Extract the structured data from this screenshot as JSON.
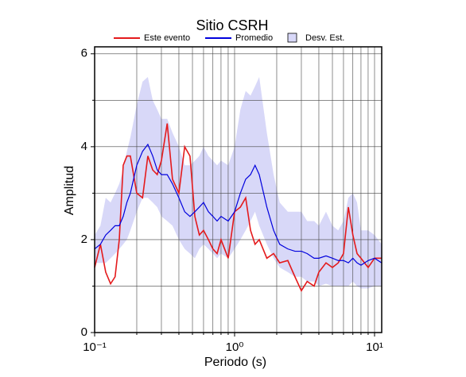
{
  "chart_data": {
    "type": "line",
    "title": "Sitio CSRH",
    "xlabel": "Periodo (s)",
    "ylabel": "Amplitud",
    "xscale": "log",
    "xlim": [
      0.1,
      11.25
    ],
    "ylim": [
      0,
      6.15
    ],
    "xticks": [
      {
        "value": 0.1,
        "label": "10⁻¹"
      },
      {
        "value": 1,
        "label": "10⁰"
      },
      {
        "value": 10,
        "label": "10¹"
      }
    ],
    "xticks_minor": [
      0.2,
      0.3,
      0.4,
      0.5,
      0.6,
      0.7,
      0.8,
      0.9,
      2,
      3,
      4,
      5,
      6,
      7,
      8,
      9
    ],
    "yticks": [
      0,
      2,
      4,
      6
    ],
    "yticks_minor": [
      1,
      3,
      5
    ],
    "grid": true,
    "legend": "top",
    "x": [
      0.1,
      0.11,
      0.12,
      0.13,
      0.14,
      0.15,
      0.16,
      0.17,
      0.18,
      0.2,
      0.22,
      0.24,
      0.26,
      0.28,
      0.3,
      0.33,
      0.36,
      0.4,
      0.44,
      0.48,
      0.52,
      0.56,
      0.6,
      0.65,
      0.7,
      0.75,
      0.8,
      0.9,
      1.0,
      1.1,
      1.2,
      1.3,
      1.4,
      1.5,
      1.7,
      1.9,
      2.1,
      2.4,
      2.7,
      3.0,
      3.3,
      3.7,
      4.0,
      4.5,
      5,
      5.5,
      6,
      6.5,
      7,
      7.5,
      8,
      9,
      10,
      11.25
    ],
    "series": [
      {
        "name": "Este evento",
        "color": "#e41a1c",
        "values": [
          1.4,
          1.9,
          1.3,
          1.05,
          1.2,
          2.0,
          3.6,
          3.8,
          3.8,
          3.0,
          2.9,
          3.8,
          3.5,
          3.4,
          3.7,
          4.5,
          3.3,
          3.0,
          4.0,
          3.8,
          2.5,
          2.1,
          2.2,
          2.0,
          1.8,
          1.7,
          2.0,
          1.6,
          2.6,
          2.7,
          2.9,
          2.2,
          1.9,
          2.0,
          1.6,
          1.7,
          1.5,
          1.55,
          1.2,
          0.9,
          1.1,
          1.0,
          1.3,
          1.5,
          1.4,
          1.5,
          1.7,
          2.7,
          2.1,
          1.7,
          1.6,
          1.4,
          1.6,
          1.6
        ]
      },
      {
        "name": "Promedio",
        "color": "#0000dd",
        "values": [
          1.8,
          1.9,
          2.1,
          2.2,
          2.3,
          2.3,
          2.5,
          2.8,
          3.0,
          3.6,
          3.9,
          4.05,
          3.8,
          3.5,
          3.4,
          3.4,
          3.2,
          2.9,
          2.6,
          2.5,
          2.6,
          2.7,
          2.8,
          2.6,
          2.5,
          2.4,
          2.5,
          2.4,
          2.6,
          3.0,
          3.3,
          3.4,
          3.6,
          3.4,
          2.7,
          2.2,
          1.9,
          1.8,
          1.75,
          1.75,
          1.7,
          1.6,
          1.6,
          1.65,
          1.6,
          1.55,
          1.55,
          1.5,
          1.6,
          1.5,
          1.45,
          1.55,
          1.6,
          1.5
        ]
      }
    ],
    "band": {
      "name": "Desv. Est.",
      "color": "#d8d8f8",
      "upper": [
        2.1,
        2.3,
        2.9,
        2.8,
        3.0,
        3.2,
        3.5,
        3.9,
        4.2,
        4.9,
        5.4,
        5.5,
        5.0,
        4.8,
        4.6,
        4.6,
        4.3,
        4.0,
        3.6,
        3.6,
        3.7,
        3.8,
        4.0,
        3.8,
        3.7,
        3.6,
        3.7,
        3.6,
        4.0,
        4.8,
        5.2,
        5.1,
        5.3,
        5.5,
        4.3,
        3.4,
        2.8,
        2.6,
        2.6,
        2.6,
        2.4,
        2.4,
        2.3,
        2.6,
        2.3,
        2.2,
        2.4,
        2.9,
        3.0,
        2.8,
        2.2,
        2.2,
        2.1,
        1.9
      ],
      "lower": [
        1.5,
        1.5,
        1.5,
        1.6,
        1.7,
        1.8,
        1.9,
        2.0,
        2.2,
        2.6,
        2.9,
        2.9,
        2.8,
        2.7,
        2.5,
        2.4,
        2.3,
        2.0,
        1.8,
        1.7,
        1.6,
        1.8,
        1.9,
        1.8,
        1.7,
        1.6,
        1.7,
        1.6,
        1.8,
        2.0,
        2.2,
        2.4,
        2.6,
        2.3,
        1.9,
        1.6,
        1.4,
        1.3,
        1.2,
        1.2,
        1.1,
        1.1,
        1.0,
        1.05,
        1.0,
        1.0,
        1.0,
        1.0,
        1.1,
        1.0,
        0.95,
        0.95,
        1.0,
        1.0
      ]
    }
  }
}
